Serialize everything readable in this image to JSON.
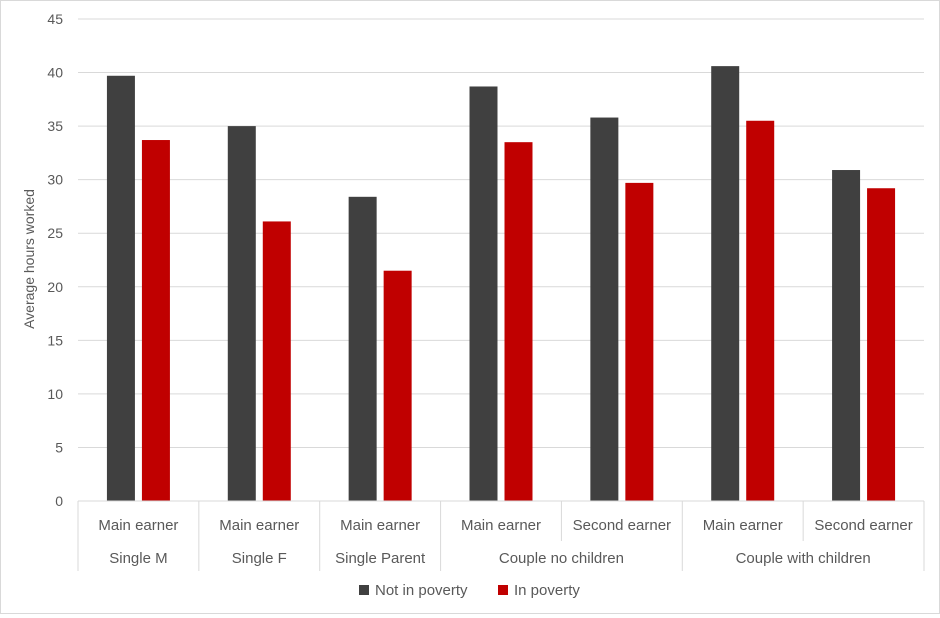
{
  "chart_data": {
    "type": "bar",
    "title": "",
    "ylabel": "Average hours worked",
    "xlabel": "",
    "ylim": [
      0,
      45
    ],
    "yticks": [
      0,
      5,
      10,
      15,
      20,
      25,
      30,
      35,
      40,
      45
    ],
    "grid": true,
    "legend_position": "bottom",
    "categories": [
      {
        "label": "Main earner",
        "group": "Single M"
      },
      {
        "label": "Main earner",
        "group": "Single F"
      },
      {
        "label": "Main earner",
        "group": "Single Parent"
      },
      {
        "label": "Main earner",
        "group": "Couple no children"
      },
      {
        "label": "Second earner",
        "group": "Couple no children"
      },
      {
        "label": "Main earner",
        "group": "Couple with children"
      },
      {
        "label": "Second earner",
        "group": "Couple with children"
      }
    ],
    "groups": [
      {
        "name": "Single M",
        "span": 1
      },
      {
        "name": "Single F",
        "span": 1
      },
      {
        "name": "Single Parent",
        "span": 1
      },
      {
        "name": "Couple no children",
        "span": 2
      },
      {
        "name": "Couple with children",
        "span": 2
      }
    ],
    "series": [
      {
        "name": "Not in poverty",
        "color": "#404040",
        "values": [
          39.7,
          35.0,
          28.4,
          38.7,
          35.8,
          40.6,
          30.9
        ]
      },
      {
        "name": "In poverty",
        "color": "#c00000",
        "values": [
          33.7,
          26.1,
          21.5,
          33.5,
          29.7,
          35.5,
          29.2
        ]
      }
    ]
  }
}
